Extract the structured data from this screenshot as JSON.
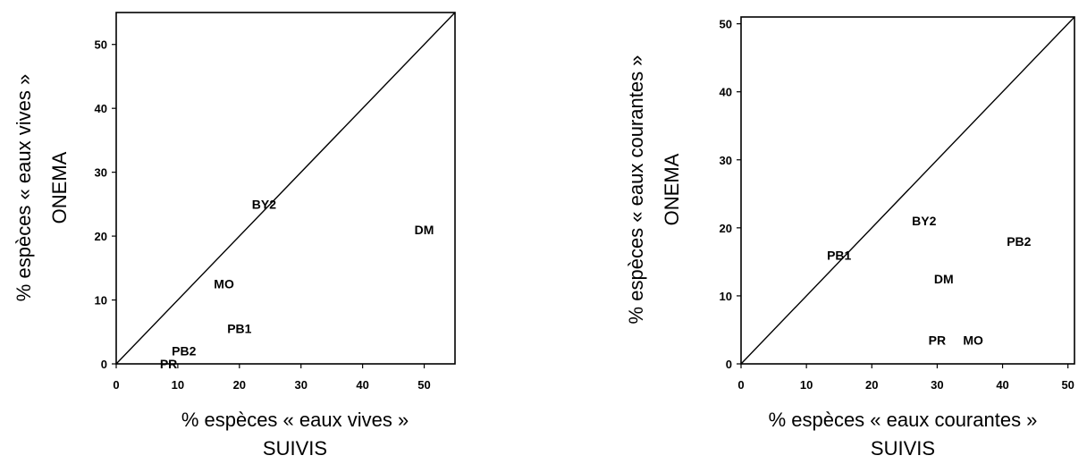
{
  "chart_data": [
    {
      "type": "scatter",
      "xlabel": [
        "% espèces « eaux vives »",
        "SUIVIS"
      ],
      "ylabel": [
        "% espèces « eaux vives »",
        "ONEMA"
      ],
      "xlim": [
        0,
        55
      ],
      "ylim": [
        0,
        55
      ],
      "xticks": [
        0,
        10,
        20,
        30,
        40,
        50
      ],
      "yticks": [
        0,
        10,
        20,
        30,
        40,
        50
      ],
      "diagonal": true,
      "points": [
        {
          "label": "BY2",
          "x": 24,
          "y": 25
        },
        {
          "label": "DM",
          "x": 50,
          "y": 21
        },
        {
          "label": "MO",
          "x": 17.5,
          "y": 12.5
        },
        {
          "label": "PB1",
          "x": 20,
          "y": 5.5
        },
        {
          "label": "PB2",
          "x": 11,
          "y": 2
        },
        {
          "label": "PR",
          "x": 8.5,
          "y": 0
        }
      ]
    },
    {
      "type": "scatter",
      "xlabel": [
        "% espèces « eaux courantes »",
        "SUIVIS"
      ],
      "ylabel": [
        "% espèces « eaux courantes »",
        "ONEMA"
      ],
      "xlim": [
        0,
        51
      ],
      "ylim": [
        0,
        51
      ],
      "xticks": [
        0,
        10,
        20,
        30,
        40,
        50
      ],
      "yticks": [
        0,
        10,
        20,
        30,
        40,
        50
      ],
      "diagonal": true,
      "points": [
        {
          "label": "PB1",
          "x": 15,
          "y": 16
        },
        {
          "label": "BY2",
          "x": 28,
          "y": 21
        },
        {
          "label": "PB2",
          "x": 42.5,
          "y": 18
        },
        {
          "label": "DM",
          "x": 31,
          "y": 12.5
        },
        {
          "label": "PR",
          "x": 30,
          "y": 3.5
        },
        {
          "label": "MO",
          "x": 35.5,
          "y": 3.5
        }
      ]
    }
  ]
}
